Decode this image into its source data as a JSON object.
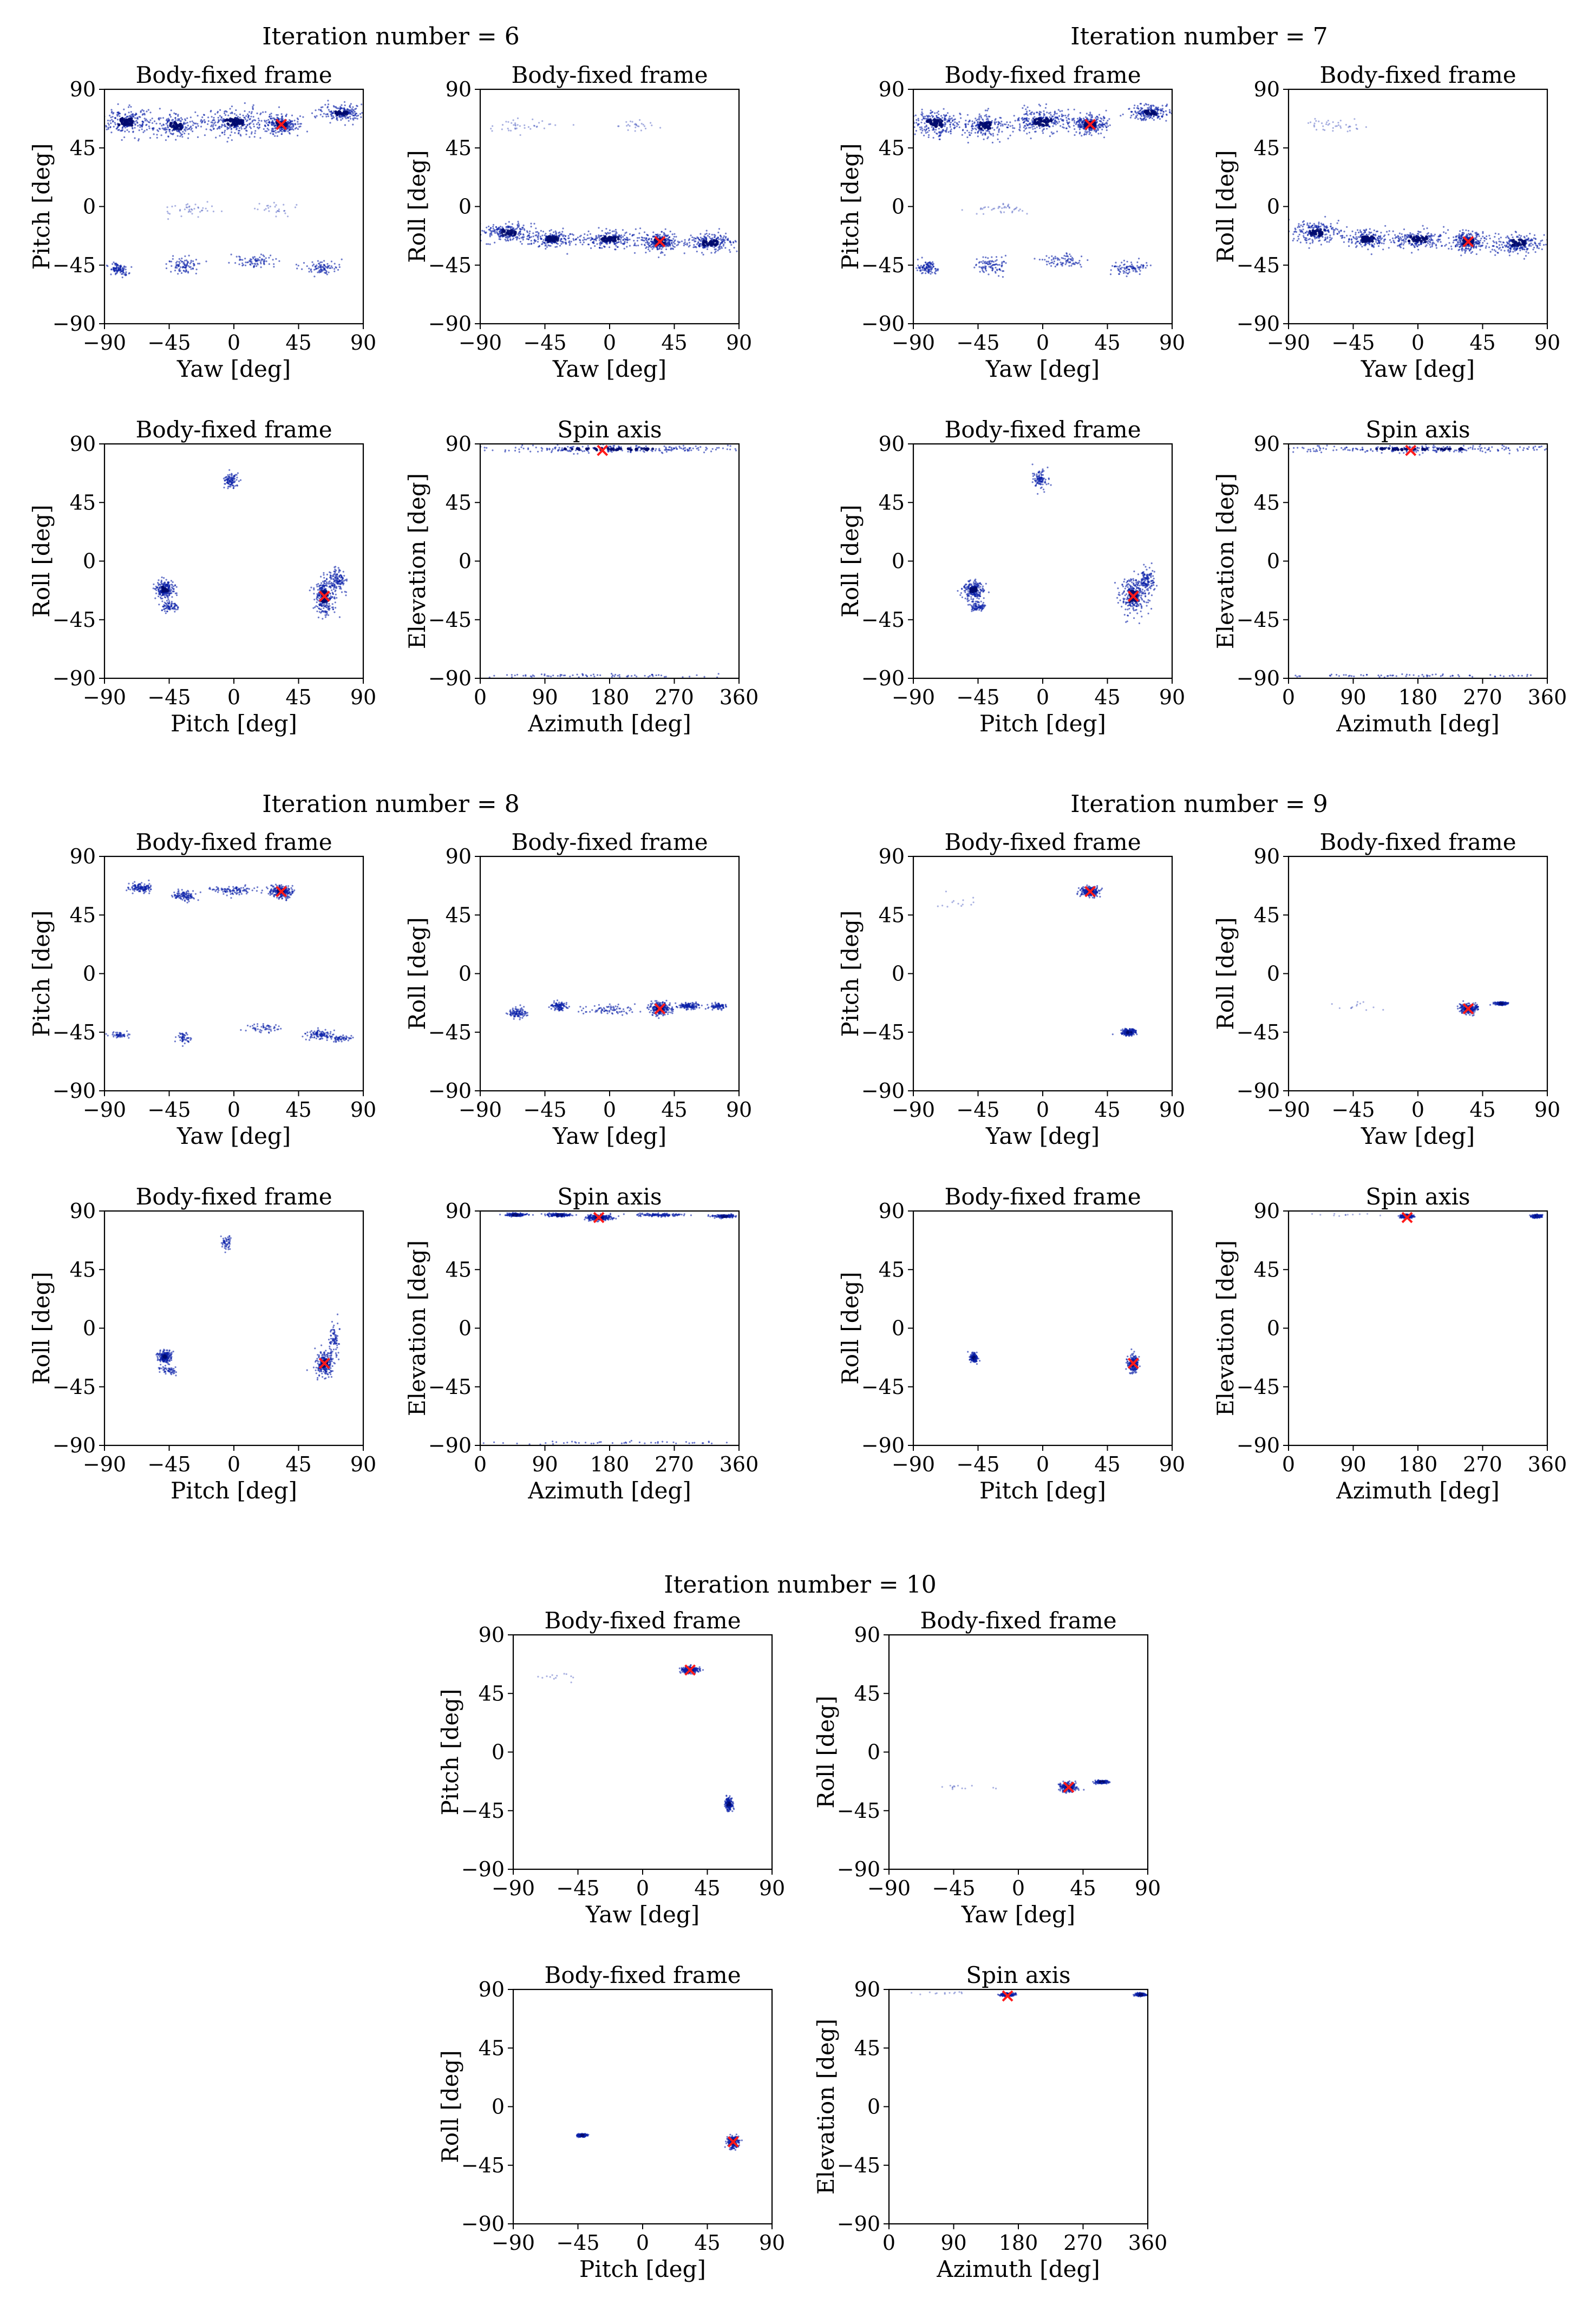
{
  "figure": {
    "groups": [
      {
        "title": "Iteration number = 6"
      },
      {
        "title": "Iteration number = 7"
      },
      {
        "title": "Iteration number = 8"
      },
      {
        "title": "Iteration number = 9"
      },
      {
        "title": "Iteration number = 10"
      }
    ]
  },
  "colors": {
    "scatter": "#0a1fa8",
    "dense": "#000a6e",
    "marker": "#ff1a1a",
    "axis": "#000000"
  },
  "chart_data": [
    {
      "type": "scatter",
      "group": 0,
      "title": "Body-fixed frame",
      "xlabel": "Yaw [deg]",
      "ylabel": "Pitch [deg]",
      "xlim": [
        -90,
        90
      ],
      "ylim": [
        -90,
        90
      ],
      "xticks": [
        "−90",
        "−45",
        "0",
        "45",
        "90"
      ],
      "yticks": [
        "−90",
        "−45",
        "0",
        "45",
        "90"
      ],
      "marker": [
        33,
        63
      ],
      "clusters": [
        [
          -75,
          65,
          15,
          8,
          0.9
        ],
        [
          -40,
          62,
          12,
          8,
          0.7
        ],
        [
          0,
          65,
          18,
          8,
          1.0
        ],
        [
          33,
          63,
          10,
          6,
          1.0
        ],
        [
          75,
          72,
          12,
          5,
          0.7
        ],
        [
          -30,
          -2,
          15,
          4,
          0.15
        ],
        [
          30,
          -2,
          15,
          4,
          0.1
        ],
        [
          -80,
          -48,
          6,
          4,
          0.4
        ],
        [
          -35,
          -45,
          8,
          6,
          0.35
        ],
        [
          15,
          -42,
          12,
          4,
          0.3
        ],
        [
          60,
          -47,
          10,
          4,
          0.35
        ]
      ]
    },
    {
      "type": "scatter",
      "group": 0,
      "title": "Body-fixed frame",
      "xlabel": "Yaw [deg]",
      "ylabel": "Roll [deg]",
      "xlim": [
        -90,
        90
      ],
      "ylim": [
        -90,
        90
      ],
      "xticks": [
        "−90",
        "−45",
        "0",
        "45",
        "90"
      ],
      "yticks": [
        "−90",
        "−45",
        "0",
        "45",
        "90"
      ],
      "marker": [
        35,
        -27
      ],
      "clusters": [
        [
          -60,
          62,
          20,
          4,
          0.15
        ],
        [
          20,
          62,
          15,
          4,
          0.1
        ],
        [
          -70,
          -20,
          15,
          6,
          0.8
        ],
        [
          -40,
          -25,
          12,
          6,
          0.7
        ],
        [
          0,
          -25,
          18,
          6,
          0.8
        ],
        [
          35,
          -27,
          10,
          6,
          1.0
        ],
        [
          70,
          -28,
          15,
          6,
          0.8
        ]
      ]
    },
    {
      "type": "scatter",
      "group": 0,
      "title": "Body-fixed frame",
      "xlabel": "Pitch [deg]",
      "ylabel": "Roll [deg]",
      "xlim": [
        -90,
        90
      ],
      "ylim": [
        -90,
        90
      ],
      "xticks": [
        "−90",
        "−45",
        "0",
        "45",
        "90"
      ],
      "yticks": [
        "−90",
        "−45",
        "0",
        "45",
        "90"
      ],
      "marker": [
        63,
        -27
      ],
      "clusters": [
        [
          -2,
          62,
          4,
          5,
          0.4
        ],
        [
          -48,
          -22,
          6,
          6,
          0.8
        ],
        [
          -45,
          -35,
          5,
          3,
          0.3
        ],
        [
          63,
          -27,
          6,
          12,
          1.0
        ],
        [
          72,
          -15,
          5,
          8,
          0.5
        ]
      ]
    },
    {
      "type": "scatter",
      "group": 0,
      "title": "Spin axis",
      "xlabel": "Azimuth [deg]",
      "ylabel": "Elevation [deg]",
      "xlim": [
        0,
        360
      ],
      "ylim": [
        -90,
        90
      ],
      "xticks": [
        "0",
        "90",
        "180",
        "270",
        "360"
      ],
      "yticks": [
        "−90",
        "−45",
        "0",
        "45",
        "90"
      ],
      "marker": [
        170,
        85
      ],
      "clusters": [
        [
          180,
          86,
          180,
          2,
          1.0
        ],
        [
          180,
          -88,
          180,
          1,
          0.3
        ]
      ]
    },
    {
      "type": "scatter",
      "group": 1,
      "title": "Body-fixed frame",
      "xlabel": "Yaw [deg]",
      "ylabel": "Pitch [deg]",
      "xlim": [
        -90,
        90
      ],
      "ylim": [
        -90,
        90
      ],
      "xticks": [
        "−90",
        "−45",
        "0",
        "45",
        "90"
      ],
      "yticks": [
        "−90",
        "−45",
        "0",
        "45",
        "90"
      ],
      "marker": [
        33,
        63
      ],
      "clusters": [
        [
          -75,
          64,
          15,
          8,
          0.9
        ],
        [
          -40,
          62,
          12,
          8,
          0.7
        ],
        [
          0,
          65,
          18,
          8,
          1.0
        ],
        [
          33,
          63,
          10,
          6,
          1.0
        ],
        [
          75,
          72,
          12,
          5,
          0.7
        ],
        [
          -30,
          -2,
          15,
          4,
          0.15
        ],
        [
          -80,
          -47,
          6,
          4,
          0.4
        ],
        [
          -35,
          -45,
          8,
          6,
          0.35
        ],
        [
          15,
          -42,
          12,
          4,
          0.3
        ],
        [
          60,
          -47,
          10,
          4,
          0.35
        ]
      ]
    },
    {
      "type": "scatter",
      "group": 1,
      "title": "Body-fixed frame",
      "xlabel": "Yaw [deg]",
      "ylabel": "Roll [deg]",
      "xlim": [
        -90,
        90
      ],
      "ylim": [
        -90,
        90
      ],
      "xticks": [
        "−90",
        "−45",
        "0",
        "45",
        "90"
      ],
      "yticks": [
        "−90",
        "−45",
        "0",
        "45",
        "90"
      ],
      "marker": [
        35,
        -27
      ],
      "clusters": [
        [
          -60,
          62,
          18,
          4,
          0.15
        ],
        [
          -70,
          -20,
          15,
          7,
          0.8
        ],
        [
          -35,
          -25,
          12,
          6,
          0.7
        ],
        [
          0,
          -25,
          18,
          6,
          0.8
        ],
        [
          35,
          -27,
          10,
          6,
          1.0
        ],
        [
          70,
          -28,
          15,
          7,
          0.8
        ]
      ]
    },
    {
      "type": "scatter",
      "group": 1,
      "title": "Body-fixed frame",
      "xlabel": "Pitch [deg]",
      "ylabel": "Roll [deg]",
      "xlim": [
        -90,
        90
      ],
      "ylim": [
        -90,
        90
      ],
      "xticks": [
        "−90",
        "−45",
        "0",
        "45",
        "90"
      ],
      "yticks": [
        "−90",
        "−45",
        "0",
        "45",
        "90"
      ],
      "marker": [
        63,
        -27
      ],
      "clusters": [
        [
          -2,
          63,
          4,
          6,
          0.4
        ],
        [
          -48,
          -22,
          6,
          6,
          0.8
        ],
        [
          -45,
          -35,
          5,
          3,
          0.3
        ],
        [
          63,
          -27,
          7,
          12,
          1.0
        ],
        [
          72,
          -15,
          5,
          8,
          0.5
        ]
      ]
    },
    {
      "type": "scatter",
      "group": 1,
      "title": "Spin axis",
      "xlabel": "Azimuth [deg]",
      "ylabel": "Elevation [deg]",
      "xlim": [
        0,
        360
      ],
      "ylim": [
        -90,
        90
      ],
      "xticks": [
        "0",
        "90",
        "180",
        "270",
        "360"
      ],
      "yticks": [
        "−90",
        "−45",
        "0",
        "45",
        "90"
      ],
      "marker": [
        170,
        85
      ],
      "clusters": [
        [
          180,
          86,
          180,
          2,
          1.0
        ],
        [
          180,
          -88,
          180,
          1,
          0.3
        ]
      ]
    },
    {
      "type": "scatter",
      "group": 2,
      "title": "Body-fixed frame",
      "xlabel": "Yaw [deg]",
      "ylabel": "Pitch [deg]",
      "xlim": [
        -90,
        90
      ],
      "ylim": [
        -90,
        90
      ],
      "xticks": [
        "−90",
        "−45",
        "0",
        "45",
        "90"
      ],
      "yticks": [
        "−90",
        "−45",
        "0",
        "45",
        "90"
      ],
      "marker": [
        33,
        63
      ],
      "clusters": [
        [
          -65,
          66,
          6,
          3,
          0.5
        ],
        [
          -35,
          60,
          6,
          3,
          0.4
        ],
        [
          0,
          64,
          15,
          3,
          0.4
        ],
        [
          33,
          63,
          6,
          4,
          1.0
        ],
        [
          -80,
          -47,
          5,
          2,
          0.2
        ],
        [
          -35,
          -50,
          4,
          5,
          0.2
        ],
        [
          20,
          -42,
          10,
          3,
          0.2
        ],
        [
          60,
          -47,
          8,
          3,
          0.4
        ],
        [
          75,
          -50,
          6,
          2,
          0.2
        ]
      ]
    },
    {
      "type": "scatter",
      "group": 2,
      "title": "Body-fixed frame",
      "xlabel": "Yaw [deg]",
      "ylabel": "Roll [deg]",
      "xlim": [
        -90,
        90
      ],
      "ylim": [
        -90,
        90
      ],
      "xticks": [
        "−90",
        "−45",
        "0",
        "45",
        "90"
      ],
      "yticks": [
        "−90",
        "−45",
        "0",
        "45",
        "90"
      ],
      "marker": [
        35,
        -27
      ],
      "clusters": [
        [
          -65,
          -30,
          5,
          3,
          0.4
        ],
        [
          -35,
          -25,
          5,
          3,
          0.4
        ],
        [
          0,
          -28,
          15,
          3,
          0.3
        ],
        [
          35,
          -27,
          6,
          4,
          1.0
        ],
        [
          55,
          -25,
          6,
          2,
          0.5
        ],
        [
          75,
          -25,
          5,
          2,
          0.3
        ]
      ]
    },
    {
      "type": "scatter",
      "group": 2,
      "title": "Body-fixed frame",
      "xlabel": "Pitch [deg]",
      "ylabel": "Roll [deg]",
      "xlim": [
        -90,
        90
      ],
      "ylim": [
        -90,
        90
      ],
      "xticks": [
        "−90",
        "−45",
        "0",
        "45",
        "90"
      ],
      "yticks": [
        "−90",
        "−45",
        "0",
        "45",
        "90"
      ],
      "marker": [
        63,
        -27
      ],
      "clusters": [
        [
          -5,
          65,
          3,
          5,
          0.2
        ],
        [
          -48,
          -22,
          4,
          4,
          0.7
        ],
        [
          -45,
          -32,
          5,
          3,
          0.2
        ],
        [
          63,
          -27,
          5,
          8,
          1.0
        ],
        [
          70,
          -10,
          3,
          10,
          0.3
        ]
      ]
    },
    {
      "type": "scatter",
      "group": 2,
      "title": "Spin axis",
      "xlabel": "Azimuth [deg]",
      "ylabel": "Elevation [deg]",
      "xlim": [
        0,
        360
      ],
      "ylim": [
        -90,
        90
      ],
      "xticks": [
        "0",
        "90",
        "180",
        "270",
        "360"
      ],
      "yticks": [
        "−90",
        "−45",
        "0",
        "45",
        "90"
      ],
      "marker": [
        165,
        85
      ],
      "clusters": [
        [
          50,
          87,
          12,
          1,
          0.6
        ],
        [
          110,
          87,
          15,
          1,
          0.6
        ],
        [
          165,
          85,
          15,
          2,
          1.0
        ],
        [
          250,
          87,
          25,
          1,
          0.5
        ],
        [
          340,
          86,
          12,
          1,
          0.6
        ],
        [
          180,
          -88,
          180,
          1,
          0.2
        ]
      ]
    },
    {
      "type": "scatter",
      "group": 3,
      "title": "Body-fixed frame",
      "xlabel": "Yaw [deg]",
      "ylabel": "Pitch [deg]",
      "xlim": [
        -90,
        90
      ],
      "ylim": [
        -90,
        90
      ],
      "xticks": [
        "−90",
        "−45",
        "0",
        "45",
        "90"
      ],
      "yticks": [
        "−90",
        "−45",
        "0",
        "45",
        "90"
      ],
      "marker": [
        33,
        63
      ],
      "clusters": [
        [
          33,
          63,
          5,
          3,
          1.0
        ],
        [
          60,
          -45,
          4,
          2,
          0.8
        ],
        [
          -60,
          55,
          12,
          5,
          0.05
        ]
      ]
    },
    {
      "type": "scatter",
      "group": 3,
      "title": "Body-fixed frame",
      "xlabel": "Yaw [deg]",
      "ylabel": "Roll [deg]",
      "xlim": [
        -90,
        90
      ],
      "ylim": [
        -90,
        90
      ],
      "xticks": [
        "−90",
        "−45",
        "0",
        "45",
        "90"
      ],
      "yticks": [
        "−90",
        "−45",
        "0",
        "45",
        "90"
      ],
      "marker": [
        35,
        -27
      ],
      "clusters": [
        [
          35,
          -27,
          5,
          3,
          1.0
        ],
        [
          58,
          -23,
          4,
          1,
          0.6
        ],
        [
          -40,
          -25,
          15,
          3,
          0.05
        ]
      ]
    },
    {
      "type": "scatter",
      "group": 3,
      "title": "Body-fixed frame",
      "xlabel": "Pitch [deg]",
      "ylabel": "Roll [deg]",
      "xlim": [
        -90,
        90
      ],
      "ylim": [
        -90,
        90
      ],
      "xticks": [
        "−90",
        "−45",
        "0",
        "45",
        "90"
      ],
      "yticks": [
        "−90",
        "−45",
        "0",
        "45",
        "90"
      ],
      "marker": [
        63,
        -27
      ],
      "clusters": [
        [
          -48,
          -23,
          2,
          3,
          0.7
        ],
        [
          63,
          -27,
          3,
          5,
          1.0
        ]
      ]
    },
    {
      "type": "scatter",
      "group": 3,
      "title": "Spin axis",
      "xlabel": "Azimuth [deg]",
      "ylabel": "Elevation [deg]",
      "xlim": [
        0,
        360
      ],
      "ylim": [
        -90,
        90
      ],
      "xticks": [
        "0",
        "90",
        "180",
        "270",
        "360"
      ],
      "yticks": [
        "−90",
        "−45",
        "0",
        "45",
        "90"
      ],
      "marker": [
        165,
        85
      ],
      "clusters": [
        [
          165,
          86,
          8,
          1,
          1.0
        ],
        [
          345,
          86,
          6,
          1,
          0.8
        ],
        [
          80,
          87,
          40,
          1,
          0.05
        ]
      ]
    },
    {
      "type": "scatter",
      "group": 4,
      "title": "Body-fixed frame",
      "xlabel": "Yaw [deg]",
      "ylabel": "Pitch [deg]",
      "xlim": [
        -90,
        90
      ],
      "ylim": [
        -90,
        90
      ],
      "xticks": [
        "−90",
        "−45",
        "0",
        "45",
        "90"
      ],
      "yticks": [
        "−90",
        "−45",
        "0",
        "45",
        "90"
      ],
      "marker": [
        33,
        63
      ],
      "clusters": [
        [
          33,
          63,
          5,
          2,
          1.0
        ],
        [
          60,
          -40,
          2,
          4,
          0.8
        ],
        [
          -60,
          58,
          15,
          3,
          0.05
        ]
      ]
    },
    {
      "type": "scatter",
      "group": 4,
      "title": "Body-fixed frame",
      "xlabel": "Yaw [deg]",
      "ylabel": "Roll [deg]",
      "xlim": [
        -90,
        90
      ],
      "ylim": [
        -90,
        90
      ],
      "xticks": [
        "−90",
        "−45",
        "0",
        "45",
        "90"
      ],
      "yticks": [
        "−90",
        "−45",
        "0",
        "45",
        "90"
      ],
      "marker": [
        35,
        -27
      ],
      "clusters": [
        [
          35,
          -27,
          5,
          3,
          1.0
        ],
        [
          58,
          -23,
          4,
          1,
          0.6
        ],
        [
          -40,
          -27,
          15,
          2,
          0.05
        ]
      ]
    },
    {
      "type": "scatter",
      "group": 4,
      "title": "Body-fixed frame",
      "xlabel": "Pitch [deg]",
      "ylabel": "Roll [deg]",
      "xlim": [
        -90,
        90
      ],
      "ylim": [
        -90,
        90
      ],
      "xticks": [
        "−90",
        "−45",
        "0",
        "45",
        "90"
      ],
      "yticks": [
        "−90",
        "−45",
        "0",
        "45",
        "90"
      ],
      "marker": [
        63,
        -27
      ],
      "clusters": [
        [
          -42,
          -22,
          3,
          1,
          0.7
        ],
        [
          63,
          -27,
          3,
          4,
          1.0
        ]
      ]
    },
    {
      "type": "scatter",
      "group": 4,
      "title": "Spin axis",
      "xlabel": "Azimuth [deg]",
      "ylabel": "Elevation [deg]",
      "xlim": [
        0,
        360
      ],
      "ylim": [
        -90,
        90
      ],
      "xticks": [
        "0",
        "90",
        "180",
        "270",
        "360"
      ],
      "yticks": [
        "−90",
        "−45",
        "0",
        "45",
        "90"
      ],
      "marker": [
        165,
        85
      ],
      "clusters": [
        [
          165,
          86,
          8,
          1,
          1.0
        ],
        [
          350,
          86,
          6,
          1,
          0.8
        ],
        [
          80,
          87,
          40,
          1,
          0.05
        ]
      ]
    }
  ]
}
